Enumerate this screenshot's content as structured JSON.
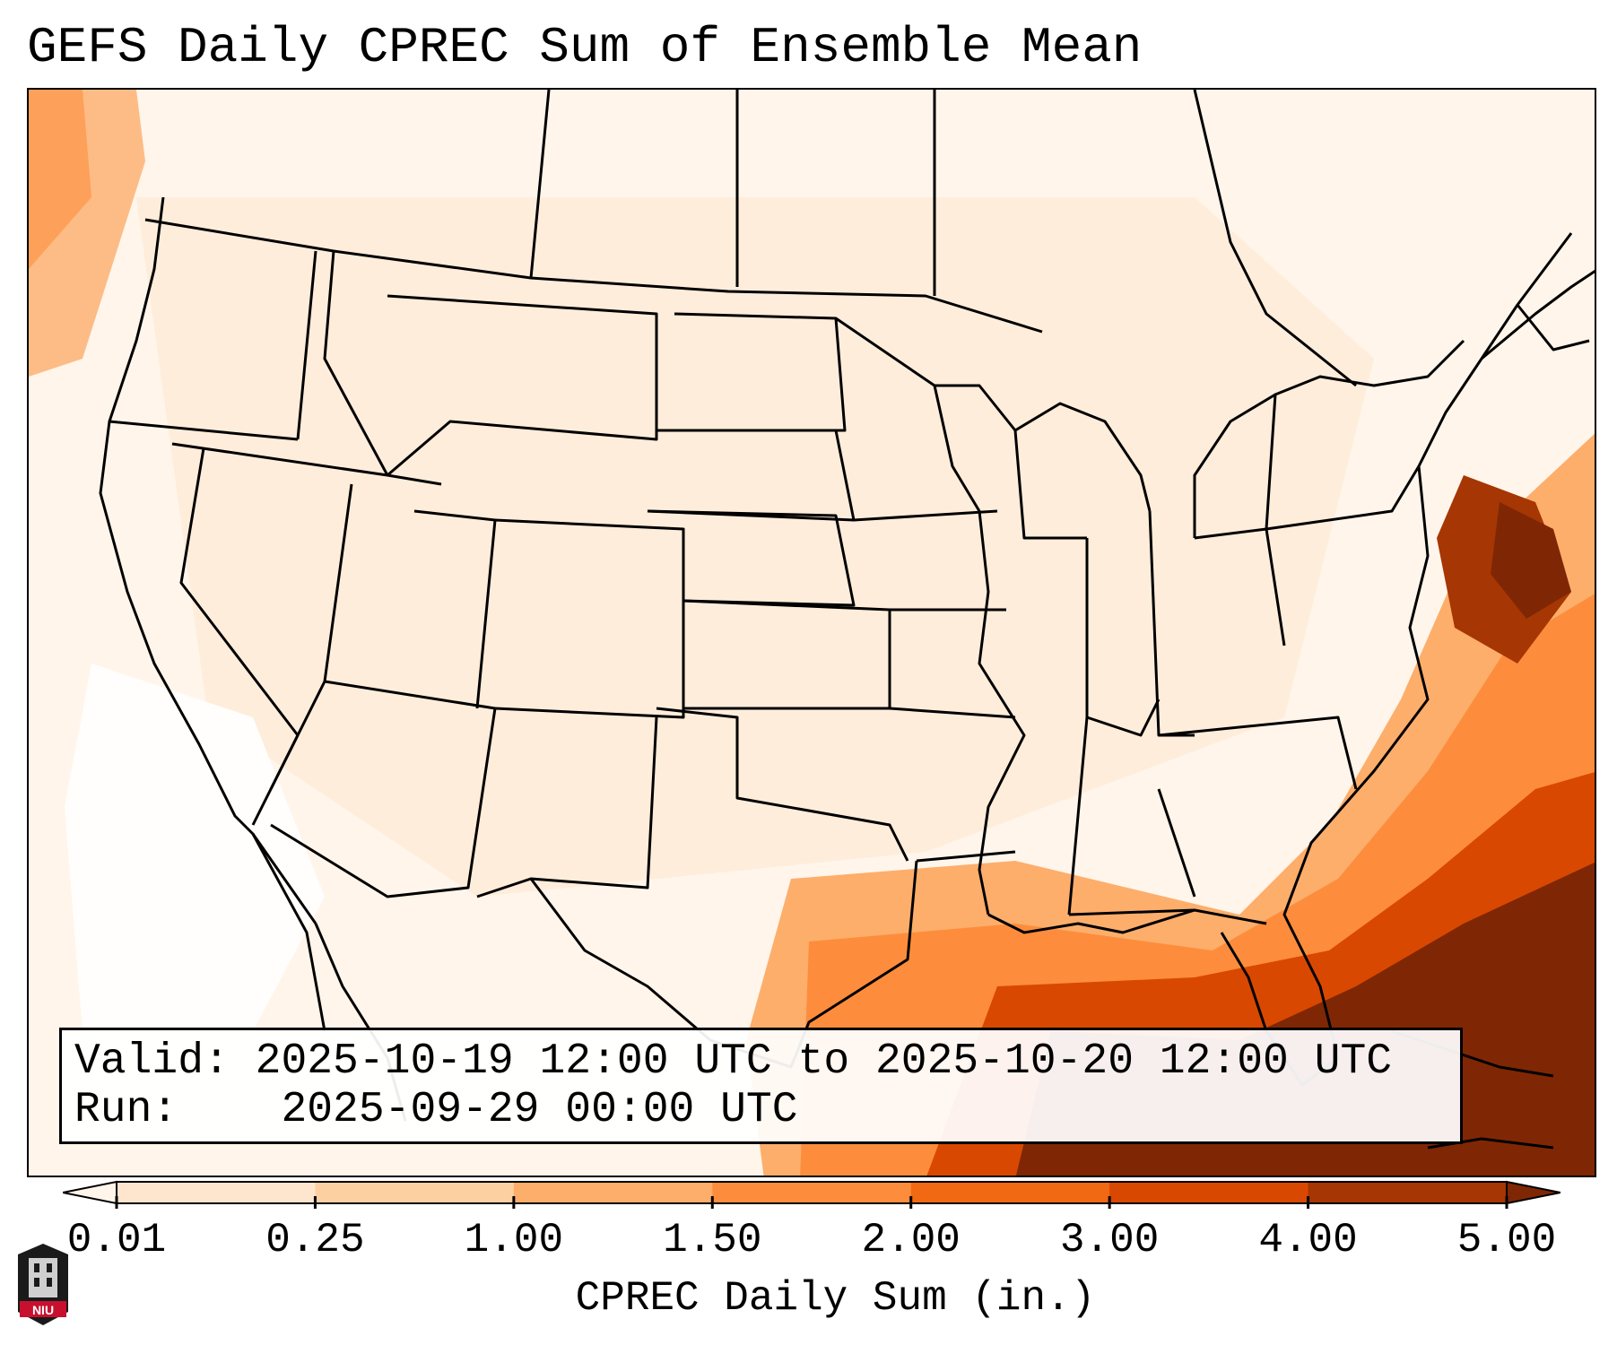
{
  "title": "GEFS Daily CPREC Sum of Ensemble Mean",
  "info": {
    "valid_label": "Valid:",
    "valid_value": "2025-10-19 12:00 UTC to 2025-10-20 12:00 UTC",
    "run_label": "Run:",
    "run_value": "2025-09-29 00:00 UTC"
  },
  "colorbar": {
    "label": "CPREC Daily Sum (in.)",
    "ticks": [
      "0.01",
      "0.25",
      "1.00",
      "1.50",
      "2.00",
      "3.00",
      "4.00",
      "5.00"
    ],
    "colors": [
      "#fff5eb",
      "#fee6ce",
      "#fdd0a2",
      "#fdae6b",
      "#fd8d3c",
      "#f16913",
      "#d94801",
      "#a63603",
      "#7f2704"
    ],
    "extend": "both"
  },
  "logo": {
    "text": "NIU",
    "icon": "niu-tower-logo-icon"
  },
  "map": {
    "region": "Contiguous United States",
    "overlay": "state and country boundaries"
  }
}
